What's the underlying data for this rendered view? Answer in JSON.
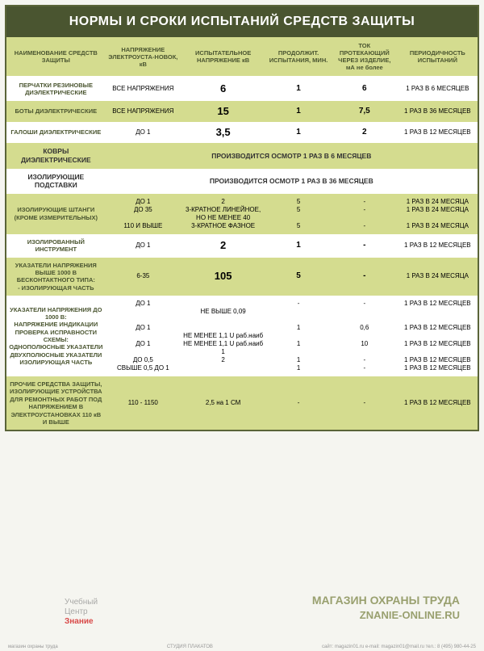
{
  "title": "НОРМЫ И СРОКИ ИСПЫТАНИЙ СРЕДСТВ ЗАЩИТЫ",
  "headers": {
    "c1": "НАИМЕНОВАНИЕ СРЕДСТВ ЗАЩИТЫ",
    "c2": "НАПРЯЖЕНИЕ ЭЛЕКТРОУСТА-НОВОК, кВ",
    "c3": "ИСПЫТАТЕЛЬНОЕ НАПРЯЖЕНИЕ кВ",
    "c4": "ПРОДОЛЖИТ. ИСПЫТАНИЯ, МИН.",
    "c5": "ТОК ПРОТЕКАЮЩИЙ ЧЕРЕЗ ИЗДЕЛИЕ, мА не более",
    "c6": "ПЕРИОДИЧНОСТЬ ИСПЫТАНИЙ"
  },
  "rows": [
    {
      "cls": "white",
      "name": "ПЕРЧАТКИ РЕЗИНОВЫЕ ДИЭЛЕКТРИЧЕСКИЕ",
      "c2": "ВСЕ НАПРЯЖЕНИЯ",
      "c3": "6",
      "c4": "1",
      "c5": "6",
      "c6": "1 РАЗ В 6 МЕСЯЦЕВ",
      "big": true
    },
    {
      "cls": "green",
      "name": "БОТЫ ДИЭЛЕКТРИЧЕСКИЕ",
      "c2": "ВСЕ НАПРЯЖЕНИЯ",
      "c3": "15",
      "c4": "1",
      "c5": "7,5",
      "c6": "1 РАЗ В 36 МЕСЯЦЕВ",
      "big": true
    },
    {
      "cls": "white",
      "name": "ГАЛОШИ ДИЭЛЕКТРИЧЕСКИЕ",
      "c2": "ДО 1",
      "c3": "3,5",
      "c4": "1",
      "c5": "2",
      "c6": "1 РАЗ В 12 МЕСЯЦЕВ",
      "big": true
    },
    {
      "cls": "green",
      "name": "КОВРЫ ДИЭЛЕКТРИЧЕСКИЕ",
      "span": "ПРОИЗВОДИТСЯ ОСМОТР 1 РАЗ В 6 МЕСЯЦЕВ"
    },
    {
      "cls": "white",
      "name": "ИЗОЛИРУЮЩИЕ ПОДСТАВКИ",
      "span": "ПРОИЗВОДИТСЯ ОСМОТР 1 РАЗ В 36 МЕСЯЦЕВ"
    },
    {
      "cls": "green",
      "name": "ИЗОЛИРУЮЩИЕ ШТАНГИ (КРОМЕ ИЗМЕРИТЕЛЬНЫХ)",
      "c2": "ДО 1\nДО 35\n\n110 И ВЫШЕ",
      "c3": "2\n3-КРАТНОЕ ЛИНЕЙНОЕ, НО НЕ МЕНЕЕ 40\n3-КРАТНОЕ ФАЗНОЕ",
      "c4": "5\n5\n\n5",
      "c5": "-\n-\n\n-",
      "c6": "1 РАЗ В 24 МЕСЯЦА\n1 РАЗ В 24 МЕСЯЦА\n\n1 РАЗ В 24 МЕСЯЦА"
    },
    {
      "cls": "white",
      "name": "ИЗОЛИРОВАННЫЙ ИНСТРУМЕНТ",
      "c2": "ДО 1",
      "c3": "2",
      "c4": "1",
      "c5": "-",
      "c6": "1 РАЗ В 12 МЕСЯЦЕВ",
      "big": true
    },
    {
      "cls": "green",
      "name": "УКАЗАТЕЛИ НАПРЯЖЕНИЯ ВЫШЕ 1000 В БЕСКОНТАКТНОГО ТИПА:\n- ИЗОЛИРУЮЩАЯ ЧАСТЬ",
      "c2": "6-35",
      "c3": "105",
      "c4": "5",
      "c5": "-",
      "c6": "1 РАЗ В 24 МЕСЯЦА",
      "big": true
    },
    {
      "cls": "white",
      "name": "УКАЗАТЕЛИ НАПРЯЖЕНИЯ ДО 1000 В:\nНАПРЯЖЕНИЕ ИНДИКАЦИИ\nПРОВЕРКА ИСПРАВНОСТИ СХЕМЫ:\nОДНОПОЛЮСНЫЕ УКАЗАТЕЛИ\nДВУХПОЛЮСНЫЕ УКАЗАТЕЛИ\nИЗОЛИРУЮЩАЯ ЧАСТЬ",
      "c2": "ДО 1\n\n\nДО 1\n\nДО 1\n\nДО 0,5\nСВЫШЕ 0,5 ДО 1",
      "c3": "НЕ ВЫШЕ 0,09\n\n\nНЕ МЕНЕЕ 1,1 U раб.наиб\nНЕ МЕНЕЕ 1,1 U раб.наиб\n1\n2",
      "c4": "-\n\n\n1\n\n1\n\n1\n1",
      "c5": "-\n\n\n0,6\n\n10\n\n-\n-",
      "c6": "1 РАЗ В 12 МЕСЯЦЕВ\n\n\n1 РАЗ В 12 МЕСЯЦЕВ\n\n1 РАЗ В 12 МЕСЯЦЕВ\n\n1 РАЗ В 12 МЕСЯЦЕВ\n1 РАЗ В 12 МЕСЯЦЕВ"
    },
    {
      "cls": "green",
      "name": "ПРОЧИЕ СРЕДСТВА ЗАЩИТЫ, ИЗОЛИРУЮЩИЕ УСТРОЙСТВА ДЛЯ РЕМОНТНЫХ РАБОТ ПОД НАПРЯЖЕНИЕМ В ЭЛЕКТРОУСТАНОВКАХ 110 кВ И ВЫШЕ",
      "c2": "110 - 1150",
      "c3": "2,5 на 1 СМ",
      "c4": "-",
      "c5": "-",
      "c6": "1 РАЗ В 12 МЕСЯЦЕВ"
    }
  ],
  "watermark1": {
    "l1": "Учебный",
    "l2": "Центр",
    "l3": "Знание"
  },
  "watermark2": {
    "l1": "МАГАЗИН ОХРАНЫ ТРУДА",
    "l2": "ZNANIE-ONLINE.RU"
  },
  "footer": {
    "left": "магазин охраны труда",
    "center": "СТУДИЯ ПЛАКАТОВ",
    "right": "сайт: magazin01.ru   e-mail: magazin01@mail.ru   тел.: 8 (495) 980-44-25"
  }
}
